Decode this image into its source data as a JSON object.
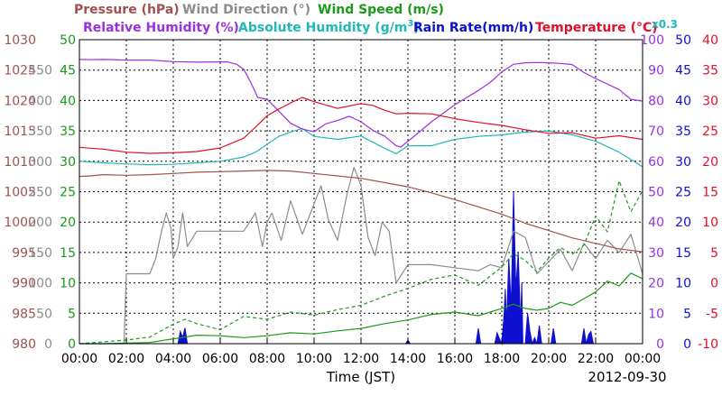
{
  "chart_data": {
    "type": "line",
    "date_label": "2012-09-30",
    "xlabel": "Time (JST)",
    "x_ticks": [
      "00:00",
      "02:00",
      "04:00",
      "06:00",
      "08:00",
      "10:00",
      "12:00",
      "14:00",
      "16:00",
      "18:00",
      "20:00",
      "22:00",
      "00:00"
    ],
    "grid": true,
    "legend": [
      {
        "text": "Pressure (hPa)",
        "color": "#a0524e"
      },
      {
        "text": "Wind Direction (°)",
        "color": "#8c8c8c"
      },
      {
        "text": "Wind Speed (m/s)",
        "color": "#1a9a1a"
      },
      {
        "text": "Relative Humidity (%)",
        "color": "#9b30e0"
      },
      {
        "text": "Absolute Humidity (g/m",
        "sup": "3",
        "tail": ")",
        "color": "#20b8b8"
      },
      {
        "text": "Rain Rate(mm/h)",
        "color": "#1010d0"
      },
      {
        "text": "Temperature (°C)",
        "color": "#e0102a"
      },
      {
        "text": "x0.3",
        "color": "#20b8b8"
      }
    ],
    "axes": {
      "pressure": {
        "color": "#a0524e",
        "ticks": [
          "1030",
          "1025",
          "1020",
          "1015",
          "1010",
          "1005",
          "1000",
          "995",
          "990",
          "985",
          "980"
        ],
        "ylim": [
          980,
          1030
        ]
      },
      "wind_direction": {
        "color": "#8c8c8c",
        "ticks": [
          "450",
          "400",
          "350",
          "300",
          "250",
          "200",
          "150",
          "100",
          "50",
          "0"
        ],
        "ylim": [
          0,
          500
        ]
      },
      "wind_speed": {
        "color": "#1a9a1a",
        "ticks": [
          "50",
          "45",
          "40",
          "35",
          "30",
          "25",
          "20",
          "15",
          "10",
          "5",
          "0"
        ],
        "ylim": [
          0,
          50
        ]
      },
      "humidity": {
        "color": "#9b30e0",
        "ticks": [
          "100",
          "90",
          "80",
          "70",
          "60",
          "50",
          "40",
          "30",
          "20",
          "10",
          "0"
        ],
        "ylim": [
          0,
          100
        ]
      },
      "rain_rate": {
        "color": "#1010d0",
        "ticks": [
          "50",
          "45",
          "40",
          "35",
          "30",
          "25",
          "20",
          "15",
          "10",
          "5",
          "0"
        ],
        "ylim": [
          0,
          50
        ]
      },
      "temperature": {
        "color": "#e0102a",
        "ticks": [
          "40",
          "35",
          "30",
          "25",
          "20",
          "15",
          "10",
          "5",
          "0",
          "-5",
          "-10"
        ],
        "ylim": [
          -10,
          40
        ]
      }
    },
    "series": [
      {
        "name": "Pressure",
        "axis": "pressure",
        "x": [
          0,
          0.5,
          1,
          2,
          3,
          4,
          5,
          6,
          7,
          8,
          9,
          10,
          11,
          12,
          13,
          14,
          15,
          16,
          17,
          18,
          19,
          20,
          21,
          22,
          23,
          24
        ],
        "y": [
          1007.5,
          1007.6,
          1007.8,
          1007.7,
          1007.8,
          1008,
          1008.2,
          1008.3,
          1008.4,
          1008.5,
          1008.4,
          1008,
          1007.6,
          1007.2,
          1006.5,
          1005.8,
          1004.8,
          1003.7,
          1002.5,
          1001.3,
          999.8,
          998.6,
          997.4,
          996.5,
          995.6,
          995.1
        ]
      },
      {
        "name": "Temperature",
        "axis": "temperature",
        "x": [
          0,
          1,
          2,
          3,
          4,
          5,
          6,
          7,
          7.5,
          8,
          8.5,
          9,
          9.5,
          10,
          11,
          12,
          12.5,
          13,
          13.5,
          14,
          15,
          16,
          17,
          18,
          19,
          20,
          21,
          22,
          23,
          24
        ],
        "y": [
          22.3,
          22,
          21.5,
          21.3,
          21.4,
          21.6,
          22.2,
          23.8,
          25.6,
          27.5,
          28.6,
          29.6,
          30.5,
          29.8,
          28.7,
          29.5,
          29.2,
          28.4,
          27.8,
          27.9,
          27.8,
          27,
          26.4,
          25.9,
          25.2,
          24.6,
          24.7,
          23.8,
          24.2,
          23.6
        ]
      },
      {
        "name": "Relative Humidity",
        "axis": "humidity",
        "x": [
          0,
          0.5,
          1,
          2,
          3,
          4,
          5,
          6,
          6.3,
          6.7,
          7,
          7.3,
          7.6,
          8,
          8.5,
          9,
          9.5,
          10,
          10.5,
          11,
          11.5,
          12,
          12.5,
          13,
          13.5,
          13.7,
          14,
          14.5,
          15,
          16,
          17,
          17.5,
          18,
          18.5,
          19,
          19.5,
          20,
          20.5,
          21,
          21.5,
          22,
          22.5,
          23,
          23.5,
          24
        ],
        "y": [
          93.5,
          93.4,
          93.5,
          93.3,
          93.3,
          92.8,
          92.6,
          92.7,
          92.7,
          91.9,
          90.3,
          86,
          81,
          80.4,
          76.5,
          72.5,
          70.6,
          69.7,
          72.3,
          73.4,
          74.8,
          73,
          70.2,
          68.3,
          65.1,
          64.7,
          66.6,
          69.7,
          73,
          78.6,
          83.3,
          85.9,
          89.4,
          91.9,
          92.4,
          92.5,
          92.4,
          92.2,
          91.8,
          89.2,
          87.2,
          85.4,
          83.6,
          80.4,
          79.8
        ]
      },
      {
        "name": "Absolute Humidity",
        "axis": "humidity",
        "x": [
          0,
          1,
          2,
          3,
          4,
          5,
          6,
          7,
          7.5,
          8,
          8.5,
          9,
          9.5,
          10,
          11,
          12,
          13,
          13.5,
          14,
          15,
          16,
          17,
          18,
          19,
          20,
          21,
          22,
          23,
          24
        ],
        "y": [
          60,
          59.5,
          59.1,
          58.9,
          59,
          59.5,
          60,
          61.4,
          63,
          65.6,
          68.2,
          69.6,
          70.8,
          68.2,
          67.2,
          68.3,
          64.3,
          62.5,
          65.1,
          65.1,
          67.2,
          68.2,
          68.7,
          69.6,
          70,
          68.7,
          66.6,
          63,
          58.2
        ]
      },
      {
        "name": "Wind Direction",
        "axis": "wind_direction",
        "x": [
          0,
          1,
          1.9,
          2,
          2.9,
          3,
          3.25,
          3.5,
          3.7,
          3.9,
          4,
          4.2,
          4.4,
          4.6,
          5,
          6,
          7,
          7.5,
          7.8,
          8,
          8.2,
          8.6,
          9,
          9.5,
          10,
          10.3,
          10.6,
          11,
          11.4,
          11.7,
          12,
          12.3,
          12.6,
          12.9,
          13.2,
          13.5,
          14,
          14.5,
          15,
          16,
          17,
          17.5,
          18,
          18.5,
          19,
          19.5,
          20,
          20.5,
          21,
          21.5,
          22,
          22.5,
          23,
          23.5,
          24
        ],
        "y": [
          0,
          0,
          0,
          115,
          115,
          115,
          140,
          185,
          215,
          190,
          140,
          160,
          215,
          160,
          185,
          185,
          185,
          215,
          160,
          200,
          215,
          170,
          235,
          180,
          230,
          260,
          205,
          170,
          245,
          290,
          260,
          175,
          145,
          200,
          185,
          100,
          130,
          130,
          130,
          125,
          120,
          130,
          125,
          185,
          175,
          115,
          135,
          155,
          120,
          165,
          140,
          170,
          150,
          180,
          115
        ]
      },
      {
        "name": "Wind Speed (max)",
        "axis": "wind_speed",
        "dashed": true,
        "x": [
          0,
          1,
          2,
          3,
          4,
          4.5,
          5,
          6,
          7,
          8,
          9,
          10,
          11,
          12,
          13,
          14,
          15,
          16,
          17,
          18,
          18.5,
          19,
          19.5,
          20,
          20.5,
          21,
          21.5,
          22,
          22.5,
          23,
          23.5,
          24
        ],
        "y": [
          0,
          0.3,
          0.6,
          1.1,
          3.2,
          4,
          3.3,
          2.3,
          4.5,
          4,
          5.2,
          4.7,
          5.6,
          6.3,
          7.8,
          9.1,
          10.6,
          11.3,
          9.6,
          12.6,
          14.8,
          13.7,
          11.8,
          14.1,
          15.8,
          14.7,
          16.2,
          21,
          18.4,
          26.8,
          21.7,
          25.2
        ]
      },
      {
        "name": "Wind Speed",
        "axis": "wind_speed",
        "x": [
          0,
          1,
          2,
          3,
          4,
          5,
          6,
          7,
          8,
          9,
          10,
          11,
          12,
          13,
          14,
          15,
          16,
          17,
          18,
          18.5,
          19,
          19.5,
          20,
          20.5,
          21,
          21.5,
          22,
          22.5,
          23,
          23.5,
          24
        ],
        "y": [
          0,
          0,
          0.1,
          0.2,
          0.8,
          1.4,
          1.3,
          1,
          1.3,
          1.8,
          1.6,
          2.1,
          2.5,
          3.3,
          3.9,
          4.8,
          5.2,
          4.6,
          5.8,
          6.5,
          5.8,
          5.5,
          5.8,
          6.8,
          6.3,
          7.4,
          8.5,
          10.3,
          9.5,
          11.6,
          10.7
        ]
      },
      {
        "name": "Rain Rate",
        "axis": "rain_rate",
        "area": true,
        "x": [
          0,
          4.2,
          4.3,
          4.4,
          4.5,
          4.6,
          13.9,
          14,
          14.1,
          16.9,
          17,
          17.1,
          17.3,
          17.7,
          17.8,
          17.9,
          18,
          18.1,
          18.15,
          18.2,
          18.3,
          18.4,
          18.5,
          18.6,
          18.7,
          18.8,
          18.85,
          18.9,
          19,
          19.1,
          19.2,
          19.3,
          19.4,
          19.5,
          19.6,
          19.7,
          19.8,
          19.9,
          20.1,
          20.2,
          20.3,
          20.4,
          20.5,
          20.6,
          21.4,
          21.5,
          21.6,
          21.7,
          21.8,
          21.9,
          22,
          24
        ],
        "y": [
          0,
          0,
          2,
          1,
          2.6,
          0,
          0,
          0.6,
          0,
          0,
          2.5,
          0,
          0,
          0,
          1.8,
          0.8,
          0,
          5,
          9,
          3,
          14,
          6,
          25,
          9,
          15,
          3,
          10,
          0,
          0,
          5,
          2,
          0,
          1,
          0,
          3,
          0,
          0,
          0,
          0,
          2.5,
          0,
          0,
          0,
          0,
          0,
          2.5,
          0,
          1.5,
          2,
          0,
          0,
          0
        ]
      }
    ]
  }
}
